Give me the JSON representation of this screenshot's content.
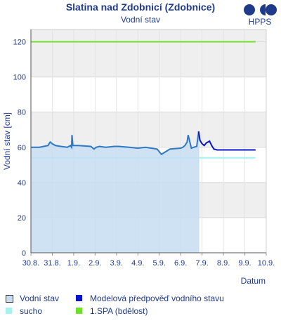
{
  "header": {
    "title": "Slatina nad Zdobnicí (Zdobnice)",
    "subtitle": "Vodní stav",
    "logo_text": "HPPS"
  },
  "chart_data": {
    "type": "line",
    "title": "Slatina nad Zdobnicí (Zdobnice)",
    "subtitle": "Vodní stav",
    "xlabel": "Datum",
    "ylabel": "Vodní stav [cm]",
    "ylim": [
      0,
      127
    ],
    "yticks": [
      0,
      20,
      40,
      60,
      80,
      100,
      120
    ],
    "xlim": [
      0,
      11
    ],
    "xtick_labels": [
      "30.8.",
      "31.8.",
      "1.9.",
      "2.9.",
      "3.9.",
      "4.9.",
      "5.9.",
      "6.9.",
      "7.9.",
      "8.9.",
      "9.9.",
      "10.9."
    ],
    "grid": true,
    "series": [
      {
        "name": "Vodní stav",
        "type": "area",
        "color": "#2f78c4",
        "fill": "#c6ddf2",
        "x": [
          0,
          0.4,
          0.8,
          0.9,
          1.0,
          1.15,
          1.4,
          1.7,
          1.85,
          1.9,
          1.92,
          1.96,
          2.2,
          2.8,
          2.95,
          3.05,
          3.2,
          3.5,
          3.9,
          4.1,
          4.6,
          5.0,
          5.35,
          5.9,
          6.1,
          6.5,
          7.0,
          7.1,
          7.2,
          7.3,
          7.35,
          7.5,
          7.6,
          7.75,
          7.84
        ],
        "y": [
          60,
          60,
          61,
          63,
          62,
          61,
          60.5,
          60,
          61,
          60,
          67,
          61,
          61,
          60.5,
          59,
          60,
          60.5,
          60,
          60.5,
          60.5,
          60,
          59.5,
          60,
          59,
          56,
          59,
          59.5,
          60,
          61,
          63,
          67,
          59.5,
          60,
          60.5,
          69
        ]
      },
      {
        "name": "Modelová předpověď vodního stavu",
        "type": "line",
        "color": "#0a14c8",
        "x": [
          7.84,
          7.9,
          8.0,
          8.1,
          8.2,
          8.35,
          8.45,
          8.55,
          8.7,
          8.9,
          9.2,
          9.6,
          10.0,
          10.4,
          10.5
        ],
        "y": [
          69,
          64,
          62,
          61,
          62.5,
          63.5,
          61,
          59,
          58.5,
          58.5,
          58.5,
          58.5,
          58.5,
          58.5,
          58.5
        ]
      },
      {
        "name": "sucho",
        "type": "hline",
        "color": "#a6f2f2",
        "x": [
          0,
          10.5
        ],
        "y": [
          54,
          54
        ]
      },
      {
        "name": "1.SPA (bdělost)",
        "type": "hline",
        "color": "#6ee02a",
        "x": [
          0,
          10.5
        ],
        "y": [
          120,
          120
        ]
      }
    ]
  },
  "legend": [
    {
      "label": "Vodní stav",
      "color": "#c6ddf2",
      "border": "#333333"
    },
    {
      "label": "Modelová předpověď vodního stavu",
      "color": "#0a14c8",
      "border": ""
    },
    {
      "label": "sucho",
      "color": "#a6f2f2",
      "border": ""
    },
    {
      "label": "1.SPA (bdělost)",
      "color": "#6ee02a",
      "border": ""
    }
  ]
}
